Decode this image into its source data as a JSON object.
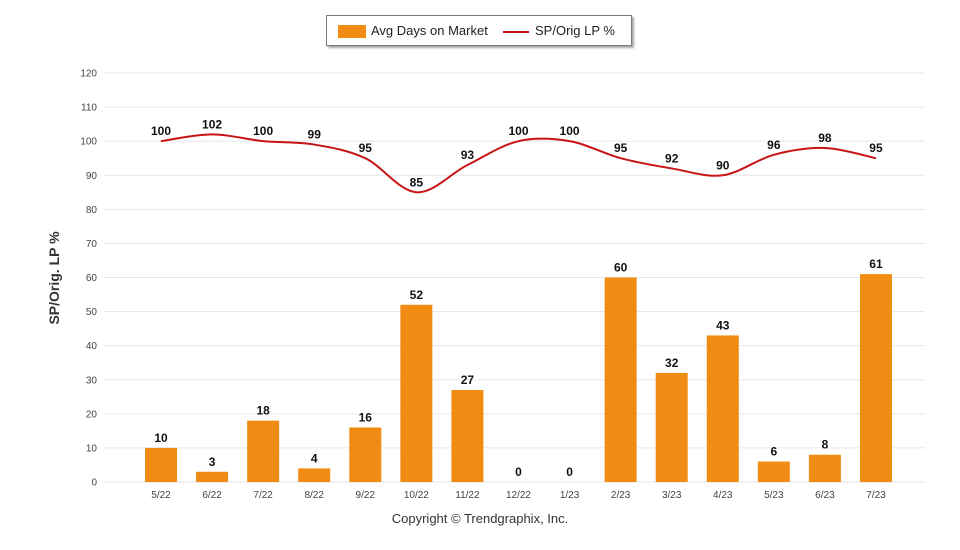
{
  "chart_data": {
    "type": "bar+line",
    "categories": [
      "5/22",
      "6/22",
      "7/22",
      "8/22",
      "9/22",
      "10/22",
      "11/22",
      "12/22",
      "1/23",
      "2/23",
      "3/23",
      "4/23",
      "5/23",
      "6/23",
      "7/23"
    ],
    "series": [
      {
        "name": "Avg Days on Market",
        "type": "bar",
        "color": "#f08c14",
        "values": [
          10,
          3,
          18,
          4,
          16,
          52,
          27,
          0,
          0,
          60,
          32,
          43,
          6,
          8,
          61
        ]
      },
      {
        "name": "SP/Orig LP %",
        "type": "line",
        "color": "#c81414",
        "values": [
          100,
          102,
          100,
          99,
          95,
          85,
          93,
          100,
          100,
          95,
          92,
          90,
          96,
          98,
          95
        ]
      }
    ],
    "ylabel": "SP/Orig. LP %",
    "ylim": [
      0,
      120
    ],
    "yticks": [
      0,
      10,
      20,
      30,
      40,
      50,
      60,
      70,
      80,
      90,
      100,
      110,
      120
    ],
    "grid": true,
    "legend_position": "top-center"
  },
  "legend": {
    "bar_label": "Avg Days on Market",
    "line_label": "SP/Orig LP %"
  },
  "footer": "Copyright © Trendgraphix, Inc."
}
